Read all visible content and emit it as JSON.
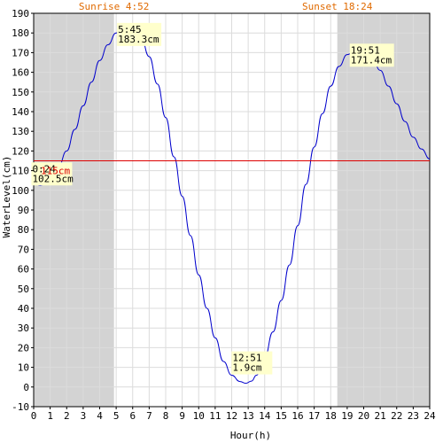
{
  "chart_data": {
    "type": "line",
    "xlabel": "Hour(h)",
    "ylabel": "WaterLevel(cm)",
    "xlim": [
      0,
      24
    ],
    "ylim": [
      -10,
      190
    ],
    "x_ticks": [
      "0",
      "1",
      "2",
      "3",
      "4",
      "5",
      "6",
      "7",
      "8",
      "9",
      "10",
      "11",
      "12",
      "13",
      "14",
      "15",
      "16",
      "17",
      "18",
      "19",
      "20",
      "21",
      "22",
      "23",
      "24"
    ],
    "y_ticks": [
      "-10",
      "0",
      "10",
      "20",
      "30",
      "40",
      "50",
      "60",
      "70",
      "80",
      "90",
      "100",
      "110",
      "120",
      "130",
      "140",
      "150",
      "160",
      "170",
      "180",
      "190"
    ],
    "grid": true,
    "sunrise": {
      "label": "Sunrise 4:52",
      "hour": 4.867
    },
    "sunset": {
      "label": "Sunset 18:24",
      "hour": 18.4
    },
    "reference_line": {
      "value": 115,
      "label": "115cm",
      "color": "#dd0000"
    },
    "series": [
      {
        "color": "#0000cc",
        "x": [
          0,
          0.4,
          1,
          1.5,
          2,
          2.5,
          3,
          3.5,
          4,
          4.5,
          5,
          5.5,
          5.75,
          6,
          6.5,
          7,
          7.5,
          8,
          8.5,
          9,
          9.5,
          10,
          10.5,
          11,
          11.5,
          12,
          12.5,
          12.85,
          13.2,
          13.5,
          14,
          14.5,
          15,
          15.5,
          16,
          16.5,
          17,
          17.5,
          18,
          18.5,
          19,
          19.5,
          19.85,
          20.2,
          20.5,
          21,
          21.5,
          22,
          22.5,
          23,
          23.5,
          24
        ],
        "values": [
          104,
          102.5,
          106,
          112,
          120,
          131,
          143,
          155,
          166,
          174,
          180,
          183,
          183.3,
          182.5,
          178,
          168,
          154,
          137,
          117,
          97,
          77,
          57,
          40,
          25,
          13,
          6,
          2.8,
          1.9,
          3,
          6,
          15,
          28,
          44,
          62,
          82,
          103,
          122,
          139,
          153,
          163,
          169,
          171,
          171.4,
          170.5,
          168,
          161,
          153,
          144,
          135,
          127,
          121,
          116
        ]
      }
    ],
    "annotations": [
      {
        "time": "0:24",
        "value": "102.5cm",
        "x": 0.4,
        "y": 102.5
      },
      {
        "time": "5:45",
        "value": "183.3cm",
        "x": 5.75,
        "y": 183.3
      },
      {
        "time": "12:51",
        "value": "1.9cm",
        "x": 12.85,
        "y": 1.9
      },
      {
        "time": "19:51",
        "value": "171.4cm",
        "x": 19.85,
        "y": 171.4
      }
    ],
    "colors": {
      "night_shade": "#d3d3d3",
      "grid": "#dcdcdc",
      "label_box": "#ffffcc"
    }
  }
}
